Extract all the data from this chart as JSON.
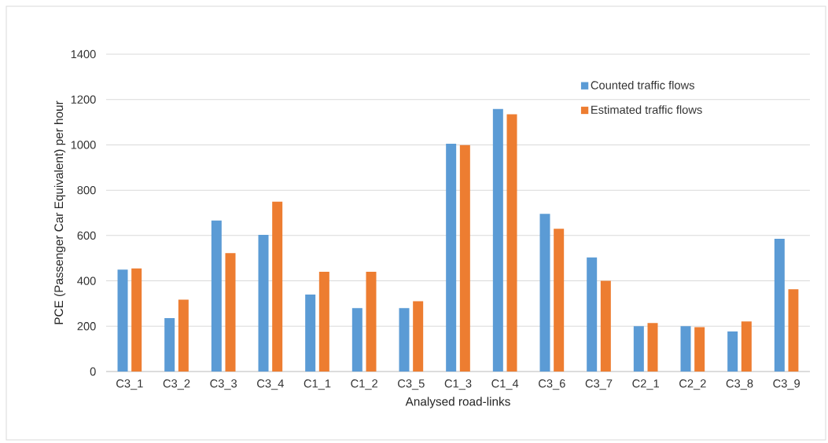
{
  "chart_data": {
    "type": "bar",
    "xlabel": "Analysed road-links",
    "ylabel": "PCE (Passenger Car Equivalent) per hour",
    "categories": [
      "C3_1",
      "C3_2",
      "C3_3",
      "C3_4",
      "C1_1",
      "C1_2",
      "C3_5",
      "C1_3",
      "C1_4",
      "C3_6",
      "C3_7",
      "C2_1",
      "C2_2",
      "C3_8",
      "C3_9"
    ],
    "series": [
      {
        "name": "Counted traffic flows",
        "color": "#5b9bd5",
        "values": [
          450,
          236,
          666,
          603,
          340,
          280,
          280,
          1005,
          1158,
          696,
          503,
          200,
          200,
          177,
          586
        ]
      },
      {
        "name": "Estimated traffic flows",
        "color": "#ed7d31",
        "values": [
          455,
          317,
          522,
          749,
          440,
          440,
          310,
          999,
          1135,
          630,
          400,
          214,
          196,
          221,
          363
        ]
      }
    ],
    "ylim": [
      0,
      1400
    ],
    "yticks": [
      0,
      200,
      400,
      600,
      800,
      1000,
      1200,
      1400
    ],
    "grid": "y",
    "legend": "top right"
  }
}
